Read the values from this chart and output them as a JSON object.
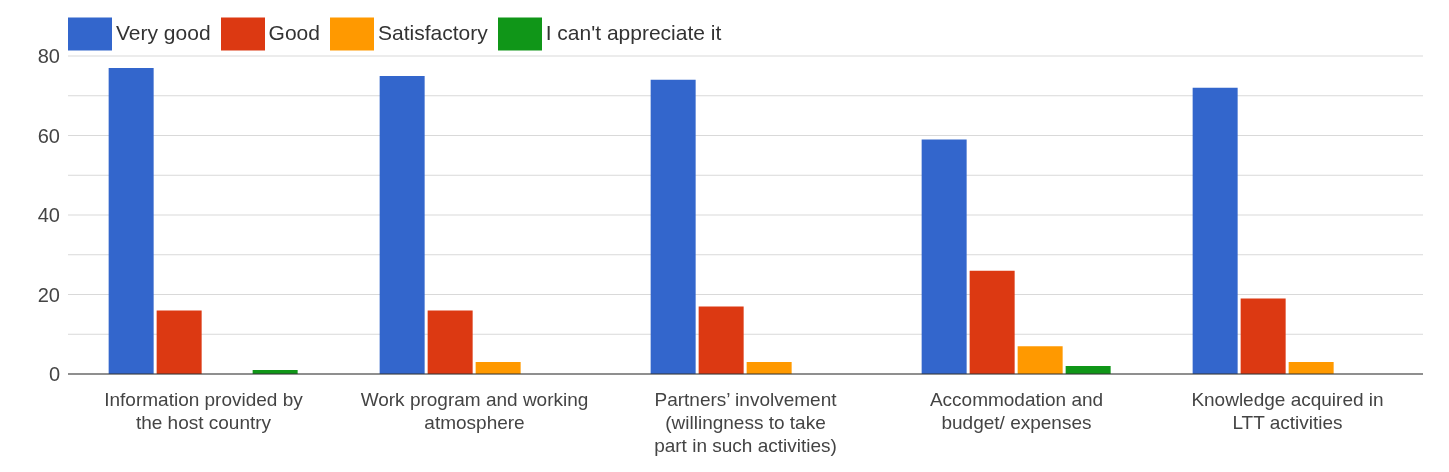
{
  "chart_data": {
    "type": "bar",
    "categories": [
      "Information provided by the host country",
      "Work program and working atmosphere",
      "Partners’ involvement (willingness to take part in such activities)",
      "Accommodation and budget/ expenses",
      "Knowledge acquired in LTT activities"
    ],
    "series": [
      {
        "name": "Very good",
        "color": "#3366cc",
        "values": [
          77,
          75,
          74,
          59,
          72
        ]
      },
      {
        "name": "Good",
        "color": "#dc3912",
        "values": [
          16,
          16,
          17,
          26,
          19
        ]
      },
      {
        "name": "Satisfactory",
        "color": "#ff9900",
        "values": [
          0,
          3,
          3,
          7,
          3
        ]
      },
      {
        "name": "I can't appreciate it",
        "color": "#109618",
        "values": [
          1,
          0,
          0,
          2,
          0
        ]
      }
    ],
    "ylim": [
      0,
      80
    ],
    "yticks": [
      0,
      {
        "value": 10,
        "label": null
      },
      20,
      {
        "value": 30,
        "label": null
      },
      40,
      {
        "value": 50,
        "label": null
      },
      60,
      {
        "value": 70,
        "label": null
      },
      80
    ],
    "grid": "y",
    "legend": "top left"
  }
}
